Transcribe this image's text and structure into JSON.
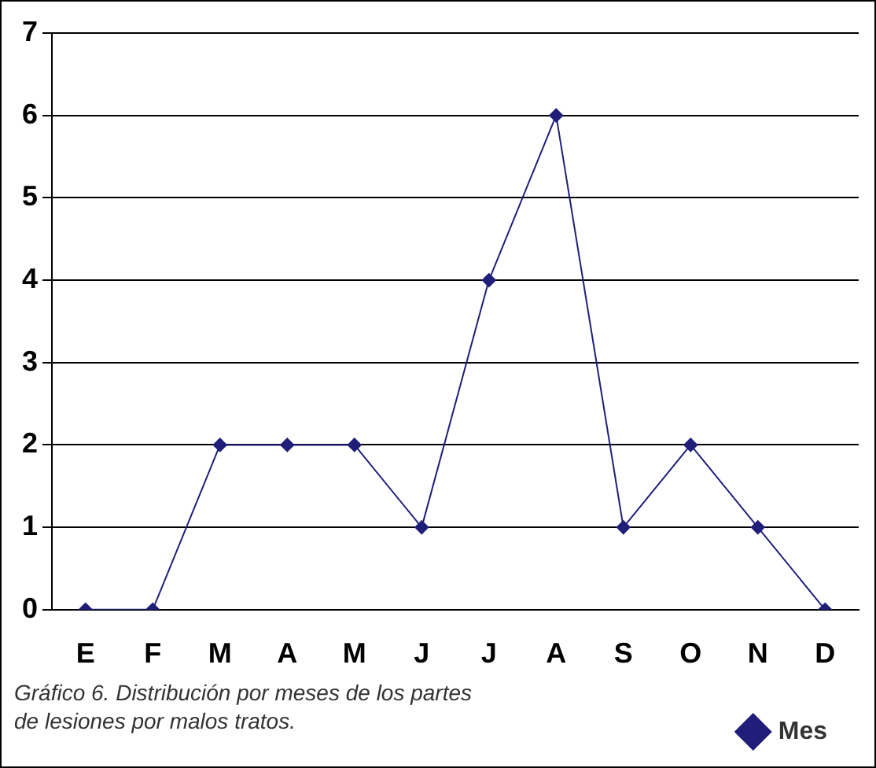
{
  "chart_data": {
    "type": "line",
    "categories": [
      "E",
      "F",
      "M",
      "A",
      "M",
      "J",
      "J",
      "A",
      "S",
      "O",
      "N",
      "D"
    ],
    "series": [
      {
        "name": "Mes",
        "color": "#1f1f7a",
        "values": [
          0,
          0,
          2,
          2,
          2,
          1,
          4,
          6,
          1,
          2,
          1,
          0
        ]
      }
    ],
    "ylim": [
      0,
      7
    ],
    "yticks": [
      0,
      1,
      2,
      3,
      4,
      5,
      6,
      7
    ],
    "grid": "y",
    "legend": "bottom right",
    "marker": "diamond",
    "line_style": "solid",
    "annotations": [
      "Gráfico 6. Distribución por meses de los partes de lesiones por malos tratos."
    ]
  }
}
